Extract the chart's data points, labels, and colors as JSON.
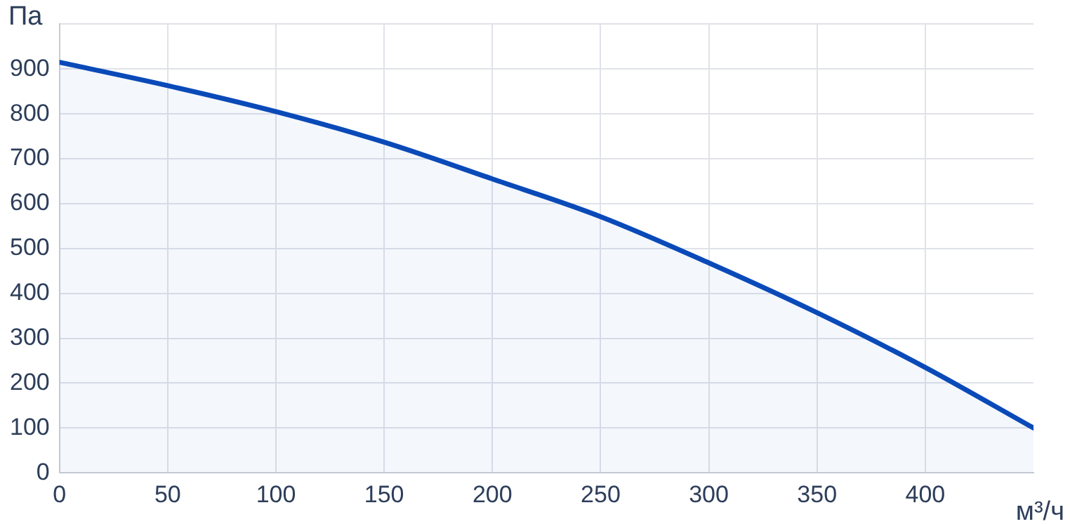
{
  "chart_data": {
    "type": "area",
    "xlabel": "м³/ч",
    "ylabel": "Па",
    "x": [
      0,
      50,
      100,
      150,
      200,
      250,
      300,
      350,
      400,
      450
    ],
    "series": [
      {
        "color": "#0a4ab8",
        "values": [
          915,
          863,
          805,
          737,
          655,
          571,
          468,
          357,
          235,
          100
        ]
      }
    ],
    "xlim": [
      0,
      450
    ],
    "xticks": [
      0,
      50,
      100,
      150,
      200,
      250,
      300,
      350,
      400
    ],
    "ylim": [
      0,
      1000
    ],
    "yticks": [
      0,
      100,
      200,
      300,
      400,
      500,
      600,
      700,
      800,
      900,
      {
        "value": 1000,
        "label": null
      }
    ],
    "grid": true,
    "legend": false
  }
}
